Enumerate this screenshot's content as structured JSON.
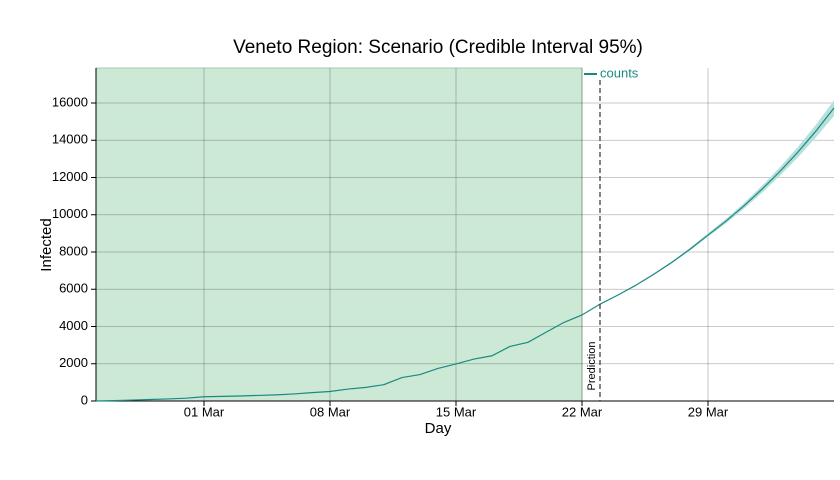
{
  "chart_data": {
    "type": "line",
    "title": "Veneto Region: Scenario (Credible Interval 95%)",
    "xlabel": "Day",
    "ylabel": "Infected",
    "x": [
      "24 Feb",
      "25 Feb",
      "26 Feb",
      "27 Feb",
      "28 Feb",
      "29 Feb",
      "01 Mar",
      "02 Mar",
      "03 Mar",
      "04 Mar",
      "05 Mar",
      "06 Mar",
      "07 Mar",
      "08 Mar",
      "09 Mar",
      "10 Mar",
      "11 Mar",
      "12 Mar",
      "13 Mar",
      "14 Mar",
      "15 Mar",
      "16 Mar",
      "17 Mar",
      "18 Mar",
      "19 Mar",
      "20 Mar",
      "21 Mar",
      "22 Mar",
      "23 Mar",
      "24 Mar",
      "25 Mar",
      "26 Mar",
      "27 Mar",
      "28 Mar",
      "29 Mar",
      "30 Mar",
      "31 Mar",
      "01 Apr",
      "02 Apr",
      "03 Apr",
      "04 Apr",
      "05 Apr"
    ],
    "series": [
      {
        "name": "counts",
        "color": "#1a8a80",
        "values": [
          0,
          20,
          50,
          80,
          110,
          150,
          230,
          250,
          270,
          300,
          330,
          380,
          450,
          510,
          640,
          730,
          880,
          1260,
          1420,
          1750,
          1990,
          2250,
          2430,
          2930,
          3150,
          3690,
          4220,
          4620,
          5200,
          5690,
          6220,
          6810,
          7450,
          8150,
          8910,
          9660,
          10480,
          11370,
          12330,
          13370,
          14500,
          15730
        ]
      }
    ],
    "interval": {
      "color": "#b6e0dc",
      "lower": [
        null,
        null,
        null,
        null,
        null,
        null,
        null,
        null,
        null,
        null,
        null,
        null,
        null,
        null,
        null,
        null,
        null,
        null,
        null,
        null,
        null,
        null,
        null,
        null,
        null,
        null,
        null,
        null,
        5200,
        5670,
        6190,
        6770,
        7400,
        8080,
        8820,
        9540,
        10330,
        11180,
        12100,
        13090,
        14160,
        15310
      ],
      "upper": [
        null,
        null,
        null,
        null,
        null,
        null,
        null,
        null,
        null,
        null,
        null,
        null,
        null,
        null,
        null,
        null,
        null,
        null,
        null,
        null,
        null,
        null,
        null,
        null,
        null,
        null,
        null,
        null,
        5200,
        5710,
        6250,
        6850,
        7500,
        8220,
        9000,
        9780,
        10630,
        11560,
        12560,
        13650,
        14840,
        16150
      ]
    },
    "observed_until": "22 Mar",
    "observed_color": "#cce9d6",
    "prediction_line": {
      "x": "23 Mar",
      "label": "Prediction"
    },
    "xticks": [
      "01 Mar",
      "08 Mar",
      "15 Mar",
      "22 Mar",
      "29 Mar"
    ],
    "ylim": [
      0,
      17880
    ],
    "yticks": [
      0,
      2000,
      4000,
      6000,
      8000,
      10000,
      12000,
      14000,
      16000
    ],
    "grid": true,
    "legend": "top-center"
  }
}
